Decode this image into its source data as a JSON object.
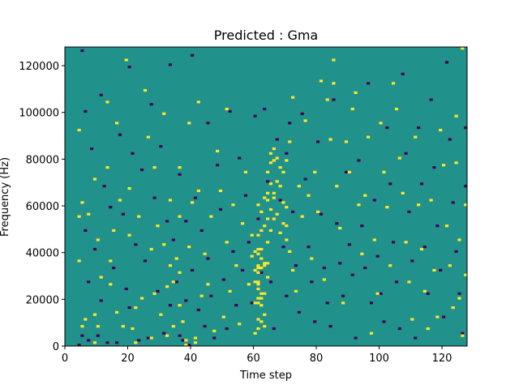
{
  "chart_data": {
    "type": "heatmap",
    "title": "Predicted : Gma",
    "xlabel": "Time step",
    "ylabel": "Frequency (Hz)",
    "xlim": [
      0,
      128
    ],
    "ylim": [
      0,
      128000
    ],
    "x_ticks": [
      0,
      20,
      40,
      60,
      80,
      100,
      120
    ],
    "y_ticks": [
      0,
      20000,
      40000,
      60000,
      80000,
      100000,
      120000
    ],
    "colormap": "viridis",
    "background_value_color": "#21918c",
    "value_colors": {
      "low": "#440154",
      "high": "#fde725"
    },
    "grid": false,
    "n_time_steps": 128,
    "n_freq_bins": 128,
    "cells": {
      "high": [
        [
          4,
          92
        ],
        [
          4,
          55
        ],
        [
          4,
          36
        ],
        [
          5,
          61
        ],
        [
          5,
          8
        ],
        [
          6,
          11
        ],
        [
          7,
          56
        ],
        [
          9,
          1
        ],
        [
          9,
          13
        ],
        [
          9,
          71
        ],
        [
          10,
          45
        ],
        [
          10,
          8
        ],
        [
          11,
          29
        ],
        [
          13,
          104
        ],
        [
          13,
          76
        ],
        [
          14,
          26
        ],
        [
          14,
          36
        ],
        [
          15,
          49
        ],
        [
          16,
          95
        ],
        [
          16,
          14
        ],
        [
          17,
          62
        ],
        [
          18,
          8
        ],
        [
          19,
          122
        ],
        [
          20,
          67
        ],
        [
          20,
          47
        ],
        [
          21,
          7
        ],
        [
          22,
          1
        ],
        [
          22,
          16
        ],
        [
          23,
          55
        ],
        [
          24,
          20
        ],
        [
          25,
          109
        ],
        [
          26,
          89
        ],
        [
          27,
          41
        ],
        [
          27,
          3
        ],
        [
          28,
          76
        ],
        [
          28,
          22
        ],
        [
          29,
          51
        ],
        [
          30,
          13
        ],
        [
          31,
          99
        ],
        [
          31,
          43
        ],
        [
          32,
          4
        ],
        [
          32,
          25
        ],
        [
          33,
          62
        ],
        [
          33,
          34
        ],
        [
          34,
          8
        ],
        [
          34,
          27
        ],
        [
          35,
          37
        ],
        [
          36,
          76
        ],
        [
          36,
          55
        ],
        [
          36,
          31
        ],
        [
          36,
          17
        ],
        [
          37,
          10
        ],
        [
          38,
          2
        ],
        [
          38,
          0
        ],
        [
          39,
          42
        ],
        [
          39,
          95
        ],
        [
          40,
          61
        ],
        [
          41,
          3
        ],
        [
          41,
          1
        ],
        [
          42,
          66
        ],
        [
          42,
          104
        ],
        [
          43,
          21
        ],
        [
          44,
          39
        ],
        [
          45,
          26
        ],
        [
          46,
          55
        ],
        [
          47,
          6
        ],
        [
          48,
          83
        ],
        [
          49,
          66
        ],
        [
          50,
          12
        ],
        [
          51,
          44
        ],
        [
          51,
          101
        ],
        [
          52,
          23
        ],
        [
          53,
          60
        ],
        [
          54,
          34
        ],
        [
          55,
          9
        ],
        [
          56,
          52
        ],
        [
          57,
          74
        ],
        [
          58,
          26
        ],
        [
          59,
          47
        ],
        [
          59,
          38
        ],
        [
          60,
          40
        ],
        [
          60,
          32
        ],
        [
          60,
          27
        ],
        [
          60,
          18
        ],
        [
          60,
          5
        ],
        [
          61,
          60
        ],
        [
          61,
          47
        ],
        [
          61,
          41
        ],
        [
          61,
          39
        ],
        [
          61,
          34
        ],
        [
          61,
          33
        ],
        [
          61,
          31
        ],
        [
          61,
          27
        ],
        [
          61,
          26
        ],
        [
          61,
          24
        ],
        [
          61,
          20
        ],
        [
          61,
          18
        ],
        [
          61,
          11
        ],
        [
          61,
          7
        ],
        [
          62,
          57
        ],
        [
          62,
          49
        ],
        [
          62,
          41
        ],
        [
          62,
          37
        ],
        [
          62,
          33
        ],
        [
          62,
          22
        ],
        [
          62,
          20
        ],
        [
          62,
          17
        ],
        [
          62,
          10
        ],
        [
          63,
          63
        ],
        [
          63,
          51
        ],
        [
          63,
          35
        ],
        [
          63,
          34
        ],
        [
          63,
          22
        ],
        [
          63,
          13
        ],
        [
          63,
          8
        ],
        [
          64,
          74
        ],
        [
          64,
          65
        ],
        [
          64,
          62
        ],
        [
          64,
          54
        ],
        [
          64,
          44
        ],
        [
          64,
          35
        ],
        [
          64,
          29
        ],
        [
          65,
          82
        ],
        [
          65,
          78
        ],
        [
          65,
          69
        ],
        [
          65,
          58
        ],
        [
          65,
          49
        ],
        [
          66,
          84
        ],
        [
          66,
          79
        ],
        [
          66,
          65
        ],
        [
          66,
          63
        ],
        [
          66,
          54
        ],
        [
          67,
          80
        ],
        [
          67,
          70
        ],
        [
          67,
          56
        ],
        [
          68,
          76
        ],
        [
          68,
          68
        ],
        [
          68,
          48
        ],
        [
          69,
          74
        ],
        [
          69,
          61
        ],
        [
          69,
          52
        ],
        [
          70,
          79
        ],
        [
          70,
          59
        ],
        [
          70,
          51
        ],
        [
          70,
          45
        ],
        [
          71,
          87
        ],
        [
          71,
          40
        ],
        [
          72,
          106
        ],
        [
          72,
          32
        ],
        [
          73,
          23
        ],
        [
          74,
          68
        ],
        [
          75,
          55
        ],
        [
          76,
          96
        ],
        [
          77,
          64
        ],
        [
          78,
          37
        ],
        [
          79,
          74
        ],
        [
          80,
          57
        ],
        [
          81,
          113
        ],
        [
          82,
          28
        ],
        [
          83,
          105
        ],
        [
          84,
          88
        ],
        [
          85,
          122
        ],
        [
          85,
          112
        ],
        [
          86,
          68
        ],
        [
          87,
          50
        ],
        [
          88,
          18
        ],
        [
          89,
          87
        ],
        [
          90,
          74
        ],
        [
          91,
          101
        ],
        [
          92,
          108
        ],
        [
          93,
          60
        ],
        [
          94,
          39
        ],
        [
          95,
          64
        ],
        [
          96,
          89
        ],
        [
          97,
          5
        ],
        [
          98,
          45
        ],
        [
          99,
          22
        ],
        [
          100,
          95
        ],
        [
          101,
          74
        ],
        [
          102,
          59
        ],
        [
          103,
          34
        ],
        [
          104,
          112
        ],
        [
          105,
          101
        ],
        [
          106,
          80
        ],
        [
          107,
          65
        ],
        [
          108,
          44
        ],
        [
          109,
          27
        ],
        [
          110,
          11
        ],
        [
          111,
          89
        ],
        [
          112,
          60
        ],
        [
          113,
          41
        ],
        [
          114,
          23
        ],
        [
          115,
          7
        ],
        [
          116,
          62
        ],
        [
          117,
          32
        ],
        [
          118,
          12
        ],
        [
          119,
          92
        ],
        [
          120,
          77
        ],
        [
          121,
          51
        ],
        [
          122,
          34
        ],
        [
          123,
          16
        ],
        [
          124,
          98
        ],
        [
          124,
          78
        ],
        [
          125,
          45
        ],
        [
          125,
          20
        ],
        [
          126,
          4
        ],
        [
          126,
          127
        ],
        [
          127,
          60
        ],
        [
          127,
          30
        ]
      ],
      "low": [
        [
          4,
          0
        ],
        [
          5,
          4
        ],
        [
          5,
          126
        ],
        [
          6,
          100
        ],
        [
          6,
          49
        ],
        [
          7,
          27
        ],
        [
          7,
          2
        ],
        [
          8,
          84
        ],
        [
          9,
          41
        ],
        [
          10,
          4
        ],
        [
          11,
          107
        ],
        [
          11,
          19
        ],
        [
          12,
          68
        ],
        [
          13,
          1
        ],
        [
          14,
          59
        ],
        [
          15,
          33
        ],
        [
          16,
          1
        ],
        [
          17,
          90
        ],
        [
          18,
          56
        ],
        [
          19,
          24
        ],
        [
          20,
          119
        ],
        [
          20,
          16
        ],
        [
          21,
          82
        ],
        [
          22,
          43
        ],
        [
          23,
          2
        ],
        [
          24,
          75
        ],
        [
          25,
          36
        ],
        [
          26,
          3
        ],
        [
          27,
          103
        ],
        [
          28,
          63
        ],
        [
          29,
          23
        ],
        [
          30,
          85
        ],
        [
          31,
          5
        ],
        [
          32,
          53
        ],
        [
          33,
          120
        ],
        [
          33,
          17
        ],
        [
          34,
          45
        ],
        [
          35,
          27
        ],
        [
          36,
          73
        ],
        [
          36,
          4
        ],
        [
          37,
          2
        ],
        [
          38,
          53
        ],
        [
          38,
          19
        ],
        [
          39,
          0
        ],
        [
          40,
          32
        ],
        [
          40,
          124
        ],
        [
          41,
          63
        ],
        [
          42,
          15
        ],
        [
          43,
          49
        ],
        [
          44,
          8
        ],
        [
          45,
          95
        ],
        [
          45,
          37
        ],
        [
          46,
          21
        ],
        [
          47,
          3
        ],
        [
          48,
          77
        ],
        [
          49,
          58
        ],
        [
          50,
          28
        ],
        [
          51,
          7
        ],
        [
          52,
          100
        ],
        [
          53,
          40
        ],
        [
          54,
          17
        ],
        [
          55,
          80
        ],
        [
          56,
          32
        ],
        [
          57,
          64
        ],
        [
          58,
          44
        ],
        [
          59,
          18
        ],
        [
          60,
          98
        ],
        [
          61,
          54
        ],
        [
          62,
          31
        ],
        [
          63,
          101
        ],
        [
          64,
          70
        ],
        [
          65,
          27
        ],
        [
          66,
          7
        ],
        [
          67,
          88
        ],
        [
          68,
          62
        ],
        [
          69,
          42
        ],
        [
          70,
          21
        ],
        [
          70,
          82
        ],
        [
          71,
          95
        ],
        [
          72,
          57
        ],
        [
          73,
          34
        ],
        [
          74,
          14
        ],
        [
          75,
          99
        ],
        [
          76,
          71
        ],
        [
          77,
          42
        ],
        [
          78,
          27
        ],
        [
          79,
          10
        ],
        [
          80,
          87
        ],
        [
          81,
          56
        ],
        [
          82,
          33
        ],
        [
          83,
          18
        ],
        [
          84,
          8
        ],
        [
          85,
          105
        ],
        [
          86,
          52
        ],
        [
          87,
          35
        ],
        [
          88,
          21
        ],
        [
          89,
          74
        ],
        [
          90,
          43
        ],
        [
          91,
          30
        ],
        [
          92,
          3
        ],
        [
          93,
          79
        ],
        [
          94,
          51
        ],
        [
          95,
          33
        ],
        [
          96,
          112
        ],
        [
          97,
          18
        ],
        [
          98,
          62
        ],
        [
          99,
          38
        ],
        [
          100,
          22
        ],
        [
          101,
          10
        ],
        [
          102,
          93
        ],
        [
          103,
          69
        ],
        [
          104,
          44
        ],
        [
          105,
          27
        ],
        [
          106,
          7
        ],
        [
          107,
          116
        ],
        [
          108,
          82
        ],
        [
          109,
          57
        ],
        [
          110,
          36
        ],
        [
          111,
          3
        ],
        [
          112,
          93
        ],
        [
          113,
          69
        ],
        [
          114,
          42
        ],
        [
          115,
          22
        ],
        [
          116,
          105
        ],
        [
          117,
          76
        ],
        [
          118,
          51
        ],
        [
          119,
          32
        ],
        [
          120,
          12
        ],
        [
          121,
          121
        ],
        [
          122,
          88
        ],
        [
          123,
          61
        ],
        [
          124,
          40
        ],
        [
          125,
          22
        ],
        [
          126,
          5
        ],
        [
          127,
          93
        ],
        [
          127,
          68
        ]
      ]
    }
  }
}
